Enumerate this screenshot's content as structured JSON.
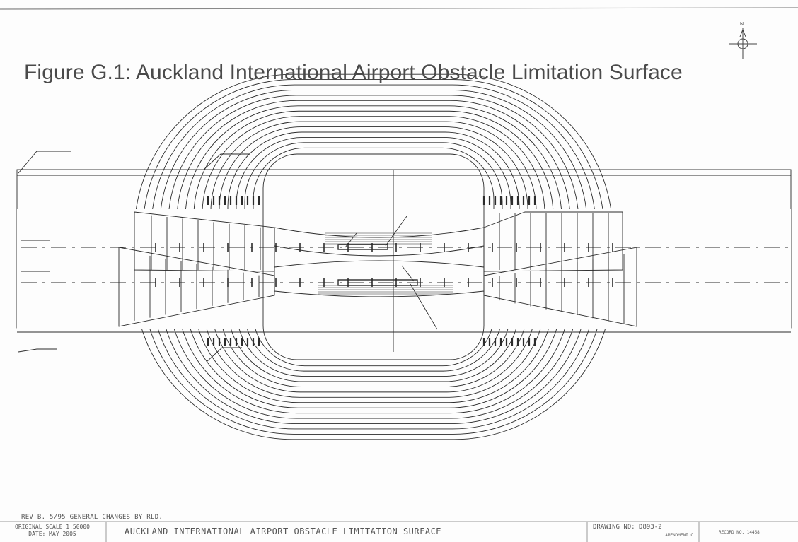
{
  "figure": {
    "title": "Figure G.1: Auckland International Airport Obstacle Limitation Surface"
  },
  "compass": {
    "north_label": "N",
    "icon": "north-arrow-icon"
  },
  "title_block": {
    "revision": "REV B. 5/95 GENERAL CHANGES BY RLD.",
    "scale": "ORIGINAL SCALE 1:50000",
    "date": "DATE: MAY 2005",
    "drawing_title": "AUCKLAND INTERNATIONAL AIRPORT   OBSTACLE LIMITATION SURFACE",
    "drawing_no": "DRAWING NO: D893-2",
    "amendment": "AMENDMENT C",
    "record_no": "RECORD NO. 14458"
  },
  "colors": {
    "ink": "#2b2b2b",
    "paper": "#fdfdfd",
    "title": "#4a4a4a"
  }
}
